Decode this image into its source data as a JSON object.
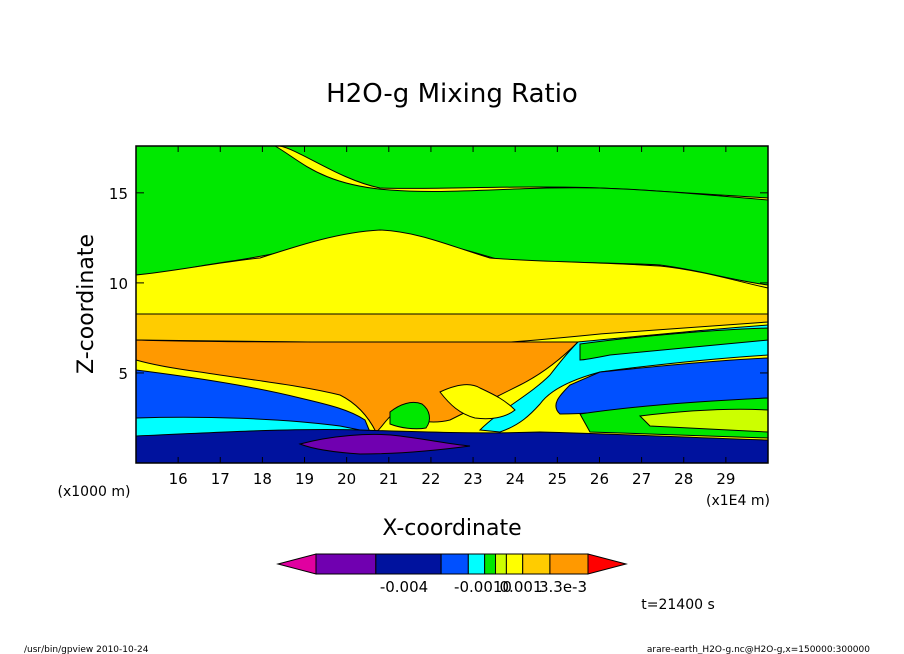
{
  "chart_data": {
    "type": "contour",
    "title": "H2O-g Mixing Ratio",
    "xlabel": "X-coordinate",
    "ylabel": "Z-coordinate",
    "x_scale_label": "(x1E4 m)",
    "y_scale_label": "(x1000 m)",
    "x_ticks": [
      "16",
      "17",
      "18",
      "19",
      "20",
      "21",
      "22",
      "23",
      "24",
      "25",
      "26",
      "27",
      "28",
      "29"
    ],
    "x_tick_values": [
      16,
      17,
      18,
      19,
      20,
      21,
      22,
      23,
      24,
      25,
      26,
      27,
      28,
      29
    ],
    "y_ticks": [
      "5",
      "10",
      "15"
    ],
    "y_tick_values": [
      5,
      10,
      15
    ],
    "xlim": [
      15.0,
      30.0
    ],
    "ylim": [
      0.0,
      17.6
    ],
    "colorbar": {
      "colors": [
        "#e000a0",
        "#7000b0",
        "#00129e",
        "#0050ff",
        "#00ffff",
        "#00e800",
        "#ccff00",
        "#ffff00",
        "#ffcc00",
        "#ff9900",
        "#ff6600",
        "#ff0000"
      ],
      "tick_labels": [
        "-0.004",
        "-0.0010",
        "0.001",
        "3.3e-3"
      ],
      "tick_after_box": [
        1,
        3,
        7,
        10
      ]
    },
    "time_label": "t=21400 s"
  },
  "footer": {
    "left": "/usr/bin/gpview   2010-10-24",
    "right": "arare-earth_H2O-g.nc@H2O-g,x=150000:300000"
  }
}
